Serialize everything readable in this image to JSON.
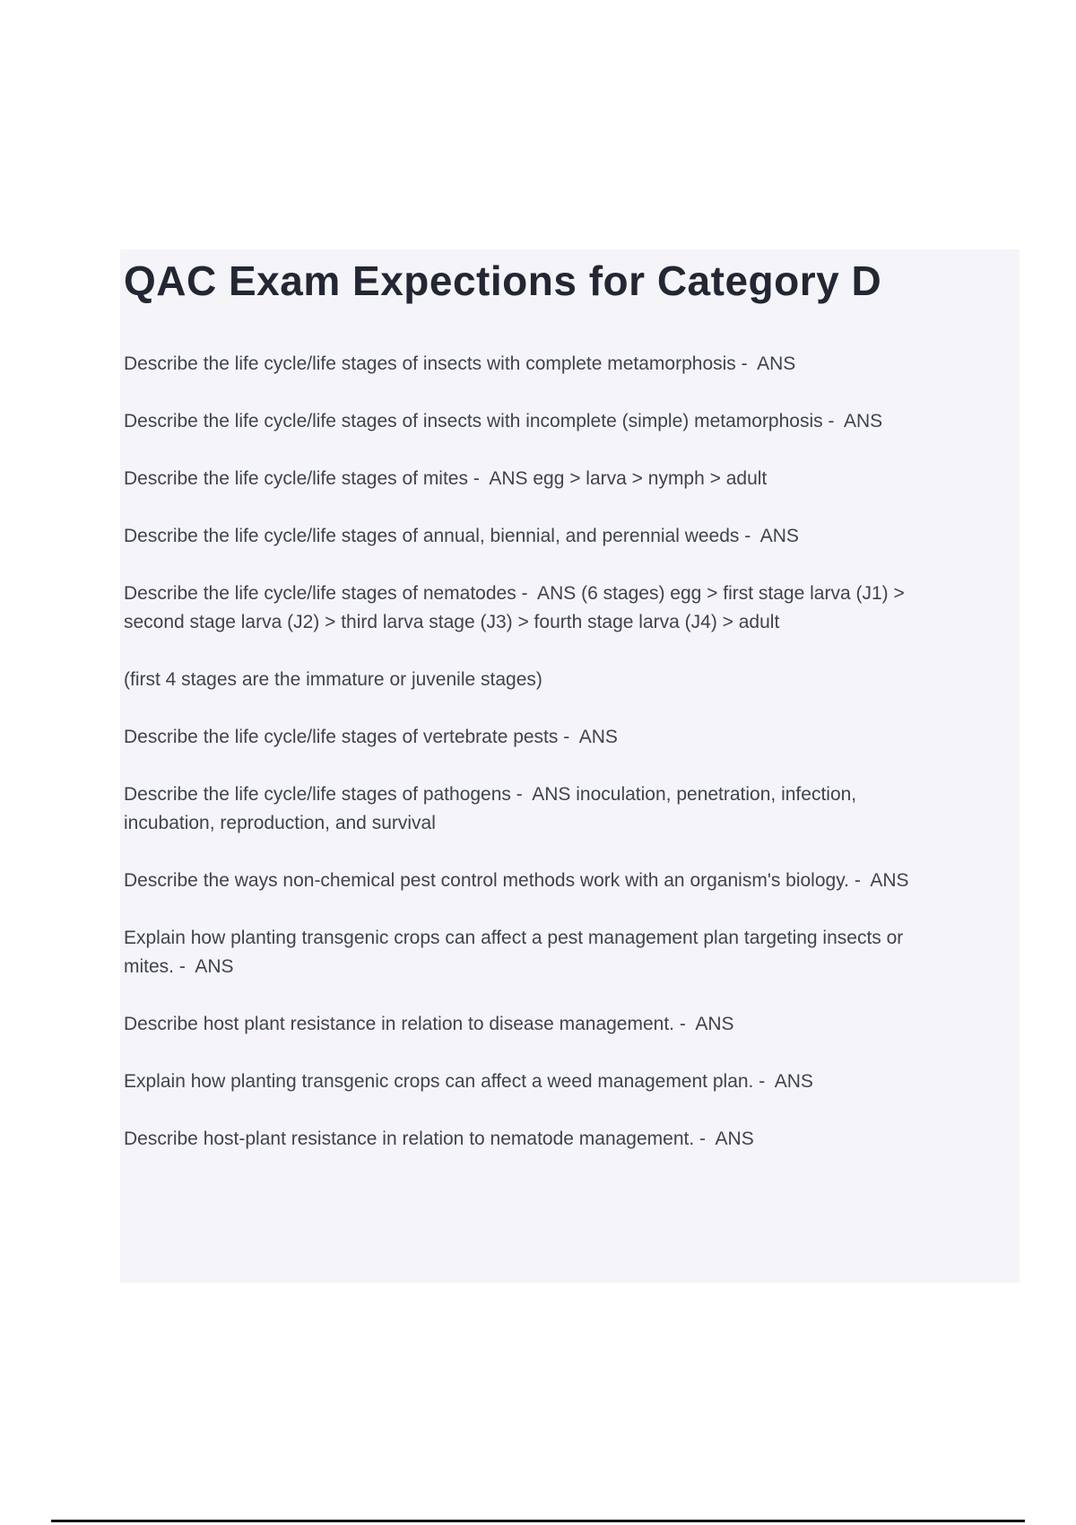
{
  "page": {
    "title": "QAC Exam Expections for Category D",
    "paragraphs": [
      "Describe the life cycle/life stages of insects with complete metamorphosis -  ANS",
      "Describe the life cycle/life stages of insects with incomplete (simple) metamorphosis -  ANS",
      "Describe the life cycle/life stages of mites -  ANS egg > larva > nymph > adult",
      "Describe the life cycle/life stages of annual, biennial, and perennial weeds -  ANS",
      "Describe the life cycle/life stages of nematodes -  ANS (6 stages) egg > first stage larva (J1) > second stage larva (J2) > third larva stage (J3) > fourth stage larva (J4) > adult",
      "(first 4 stages are the immature or juvenile stages)",
      "Describe the life cycle/life stages of vertebrate pests -  ANS",
      "Describe the life cycle/life stages of pathogens -  ANS inoculation, penetration, infection, incubation, reproduction, and survival",
      "Describe the ways non-chemical pest control methods work with an organism's biology. -  ANS",
      "Explain how planting transgenic crops can affect a pest management plan targeting insects or mites. -  ANS",
      "Describe host plant resistance in relation to disease management. -  ANS",
      "Explain how planting transgenic crops can affect a weed management plan. -  ANS",
      "Describe host-plant resistance in relation to nematode management. -  ANS"
    ],
    "colors": {
      "panel_background": "#f5f5f9",
      "title_text": "#232734",
      "body_text": "#3f434c",
      "bottom_rule": "#161616"
    }
  }
}
